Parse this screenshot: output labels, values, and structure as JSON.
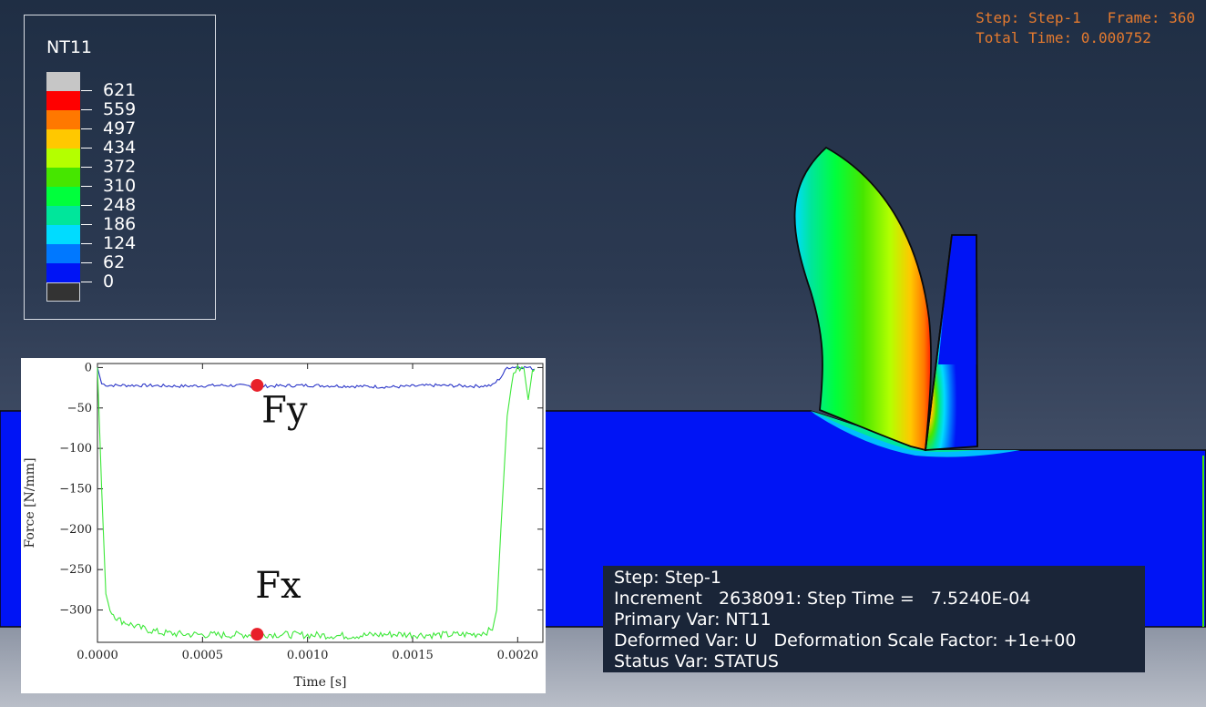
{
  "legend": {
    "title": "NT11",
    "levels": [
      "621",
      "559",
      "497",
      "434",
      "372",
      "310",
      "248",
      "186",
      "124",
      "62",
      "0"
    ],
    "colors": [
      "#c6c6c6",
      "#ff0000",
      "#ff7800",
      "#ffc800",
      "#b4ff00",
      "#46e600",
      "#00ff3c",
      "#00e69b",
      "#00dcff",
      "#0078ff",
      "#0014f5",
      "#333333"
    ]
  },
  "step_info": {
    "step_label": "Step: Step-1",
    "frame_label": "Frame: 360",
    "total_time": "Total Time: 0.000752"
  },
  "info_panel": {
    "line1": "Step: Step-1",
    "line2": "Increment   2638091: Step Time =   7.5240E-04",
    "line3": "Primary Var: NT11",
    "line4": "Deformed Var: U   Deformation Scale Factor: +1e+00",
    "line5": "Status Var: STATUS"
  },
  "chart_data": {
    "type": "line",
    "xlabel": "Time [s]",
    "ylabel": "Force [N/mm]",
    "xlim": [
      0,
      0.00212
    ],
    "ylim": [
      -340,
      5
    ],
    "xticks": [
      "0.0000",
      "0.0005",
      "0.0010",
      "0.0015",
      "0.0020"
    ],
    "yticks": [
      "0",
      "−50",
      "−100",
      "−150",
      "−200",
      "−250",
      "−300"
    ],
    "series": [
      {
        "name": "Fy",
        "color": "#2b36c8",
        "x": [
          0,
          2e-05,
          5e-05,
          0.0002,
          0.0004,
          0.0006,
          0.0008,
          0.001,
          0.0012,
          0.0014,
          0.0016,
          0.0018,
          0.00188,
          0.00192,
          0.00195,
          0.002,
          0.00205,
          0.00208
        ],
        "y": [
          0,
          -20,
          -22,
          -22,
          -23,
          -22,
          -23,
          -22,
          -23,
          -24,
          -22,
          -23,
          -22,
          -12,
          0,
          1,
          0,
          -2
        ]
      },
      {
        "name": "Fx",
        "color": "#3ee83a",
        "x": [
          0,
          2e-05,
          4e-05,
          6e-05,
          0.0001,
          0.0002,
          0.0003,
          0.0004,
          0.0006,
          0.0008,
          0.001,
          0.0012,
          0.0014,
          0.0016,
          0.0018,
          0.00188,
          0.0019,
          0.00192,
          0.00195,
          0.00198,
          0.002,
          0.00203,
          0.00205,
          0.00207,
          0.00208
        ],
        "y": [
          0,
          -150,
          -280,
          -300,
          -312,
          -322,
          -328,
          -330,
          -331,
          -330,
          -331,
          -332,
          -330,
          -331,
          -330,
          -325,
          -300,
          -200,
          -60,
          -5,
          -2,
          -1,
          -40,
          -5,
          -2
        ]
      }
    ],
    "markers": [
      {
        "series": "Fy",
        "x": 0.00076,
        "y": -22,
        "color": "#e8202a"
      },
      {
        "series": "Fx",
        "x": 0.00076,
        "y": -330,
        "color": "#e8202a"
      }
    ],
    "annotations": [
      {
        "text": "Fy",
        "x": 0.00089,
        "y": -68
      },
      {
        "text": "Fx",
        "x": 0.00086,
        "y": -285
      }
    ]
  }
}
